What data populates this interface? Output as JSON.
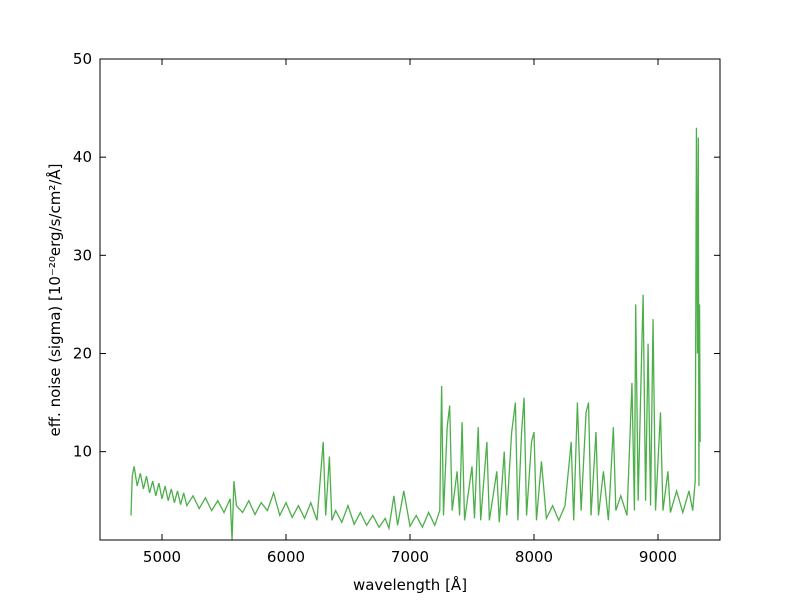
{
  "chart_data": {
    "type": "line",
    "xlabel": "wavelength [Å]",
    "ylabel": "eff. noise  (sigma)  [10⁻²⁰erg/s/cm²/Å]",
    "xlim": [
      4500,
      9500
    ],
    "xticks": [
      5000,
      6000,
      7000,
      8000,
      9000
    ],
    "ylim": [
      1,
      50
    ],
    "yticks": [
      10,
      20,
      30,
      40,
      50
    ],
    "series": [
      {
        "color": "#4daf4a",
        "x": [
          4750,
          4760,
          4775,
          4800,
          4825,
          4850,
          4875,
          4900,
          4925,
          4950,
          4975,
          5000,
          5025,
          5050,
          5075,
          5100,
          5125,
          5150,
          5175,
          5200,
          5250,
          5300,
          5350,
          5400,
          5450,
          5500,
          5550,
          5565,
          5580,
          5600,
          5650,
          5700,
          5750,
          5800,
          5850,
          5900,
          5950,
          6000,
          6050,
          6100,
          6150,
          6200,
          6250,
          6300,
          6320,
          6350,
          6370,
          6400,
          6450,
          6500,
          6550,
          6600,
          6650,
          6700,
          6750,
          6800,
          6830,
          6870,
          6900,
          6950,
          7000,
          7050,
          7100,
          7150,
          7200,
          7240,
          7255,
          7270,
          7300,
          7320,
          7340,
          7380,
          7400,
          7420,
          7440,
          7500,
          7520,
          7550,
          7570,
          7620,
          7640,
          7700,
          7720,
          7760,
          7780,
          7820,
          7850,
          7870,
          7900,
          7920,
          7940,
          7980,
          8000,
          8020,
          8060,
          8100,
          8150,
          8200,
          8250,
          8300,
          8320,
          8350,
          8380,
          8420,
          8440,
          8460,
          8500,
          8520,
          8560,
          8600,
          8640,
          8660,
          8700,
          8750,
          8790,
          8810,
          8820,
          8840,
          8870,
          8880,
          8900,
          8920,
          8940,
          8960,
          8980,
          9020,
          9040,
          9080,
          9100,
          9150,
          9200,
          9250,
          9280,
          9300,
          9310,
          9318,
          9325,
          9330,
          9335,
          9340
        ],
        "values": [
          3.5,
          7.5,
          8.5,
          6.5,
          7.8,
          6.2,
          7.5,
          5.8,
          7.0,
          5.5,
          6.8,
          5.2,
          6.5,
          5.0,
          6.2,
          4.8,
          6.0,
          4.6,
          5.8,
          4.5,
          5.5,
          4.2,
          5.3,
          4.0,
          5.0,
          3.8,
          5.2,
          1.0,
          7.0,
          4.5,
          3.8,
          5.0,
          3.6,
          4.8,
          4.0,
          5.8,
          3.5,
          4.8,
          3.3,
          4.5,
          3.2,
          4.8,
          3.0,
          11.0,
          3.5,
          9.5,
          3.0,
          4.0,
          2.8,
          4.5,
          2.6,
          3.8,
          2.5,
          3.5,
          2.3,
          3.2,
          2.2,
          5.5,
          2.5,
          6.0,
          2.4,
          3.5,
          2.3,
          3.8,
          2.5,
          4.0,
          16.7,
          3.5,
          12.5,
          14.7,
          4.0,
          8.0,
          3.5,
          13.0,
          3.0,
          8.5,
          3.2,
          12.5,
          3.0,
          11.0,
          3.0,
          8.0,
          2.8,
          10.0,
          3.5,
          12.0,
          15.0,
          3.0,
          12.0,
          15.5,
          3.5,
          11.0,
          12.0,
          3.0,
          9.0,
          3.2,
          4.5,
          3.0,
          4.5,
          11.0,
          3.0,
          15.0,
          4.0,
          14.0,
          15.0,
          3.5,
          12.0,
          3.5,
          8.0,
          3.0,
          12.5,
          4.0,
          5.5,
          3.5,
          17.0,
          4.0,
          25.0,
          5.0,
          21.0,
          26.0,
          5.0,
          21.0,
          4.5,
          23.5,
          4.0,
          14.0,
          4.0,
          8.0,
          3.8,
          6.0,
          3.8,
          6.0,
          4.0,
          7.0,
          43.0,
          20.0,
          42.0,
          6.5,
          25.0,
          11.0
        ]
      }
    ]
  }
}
